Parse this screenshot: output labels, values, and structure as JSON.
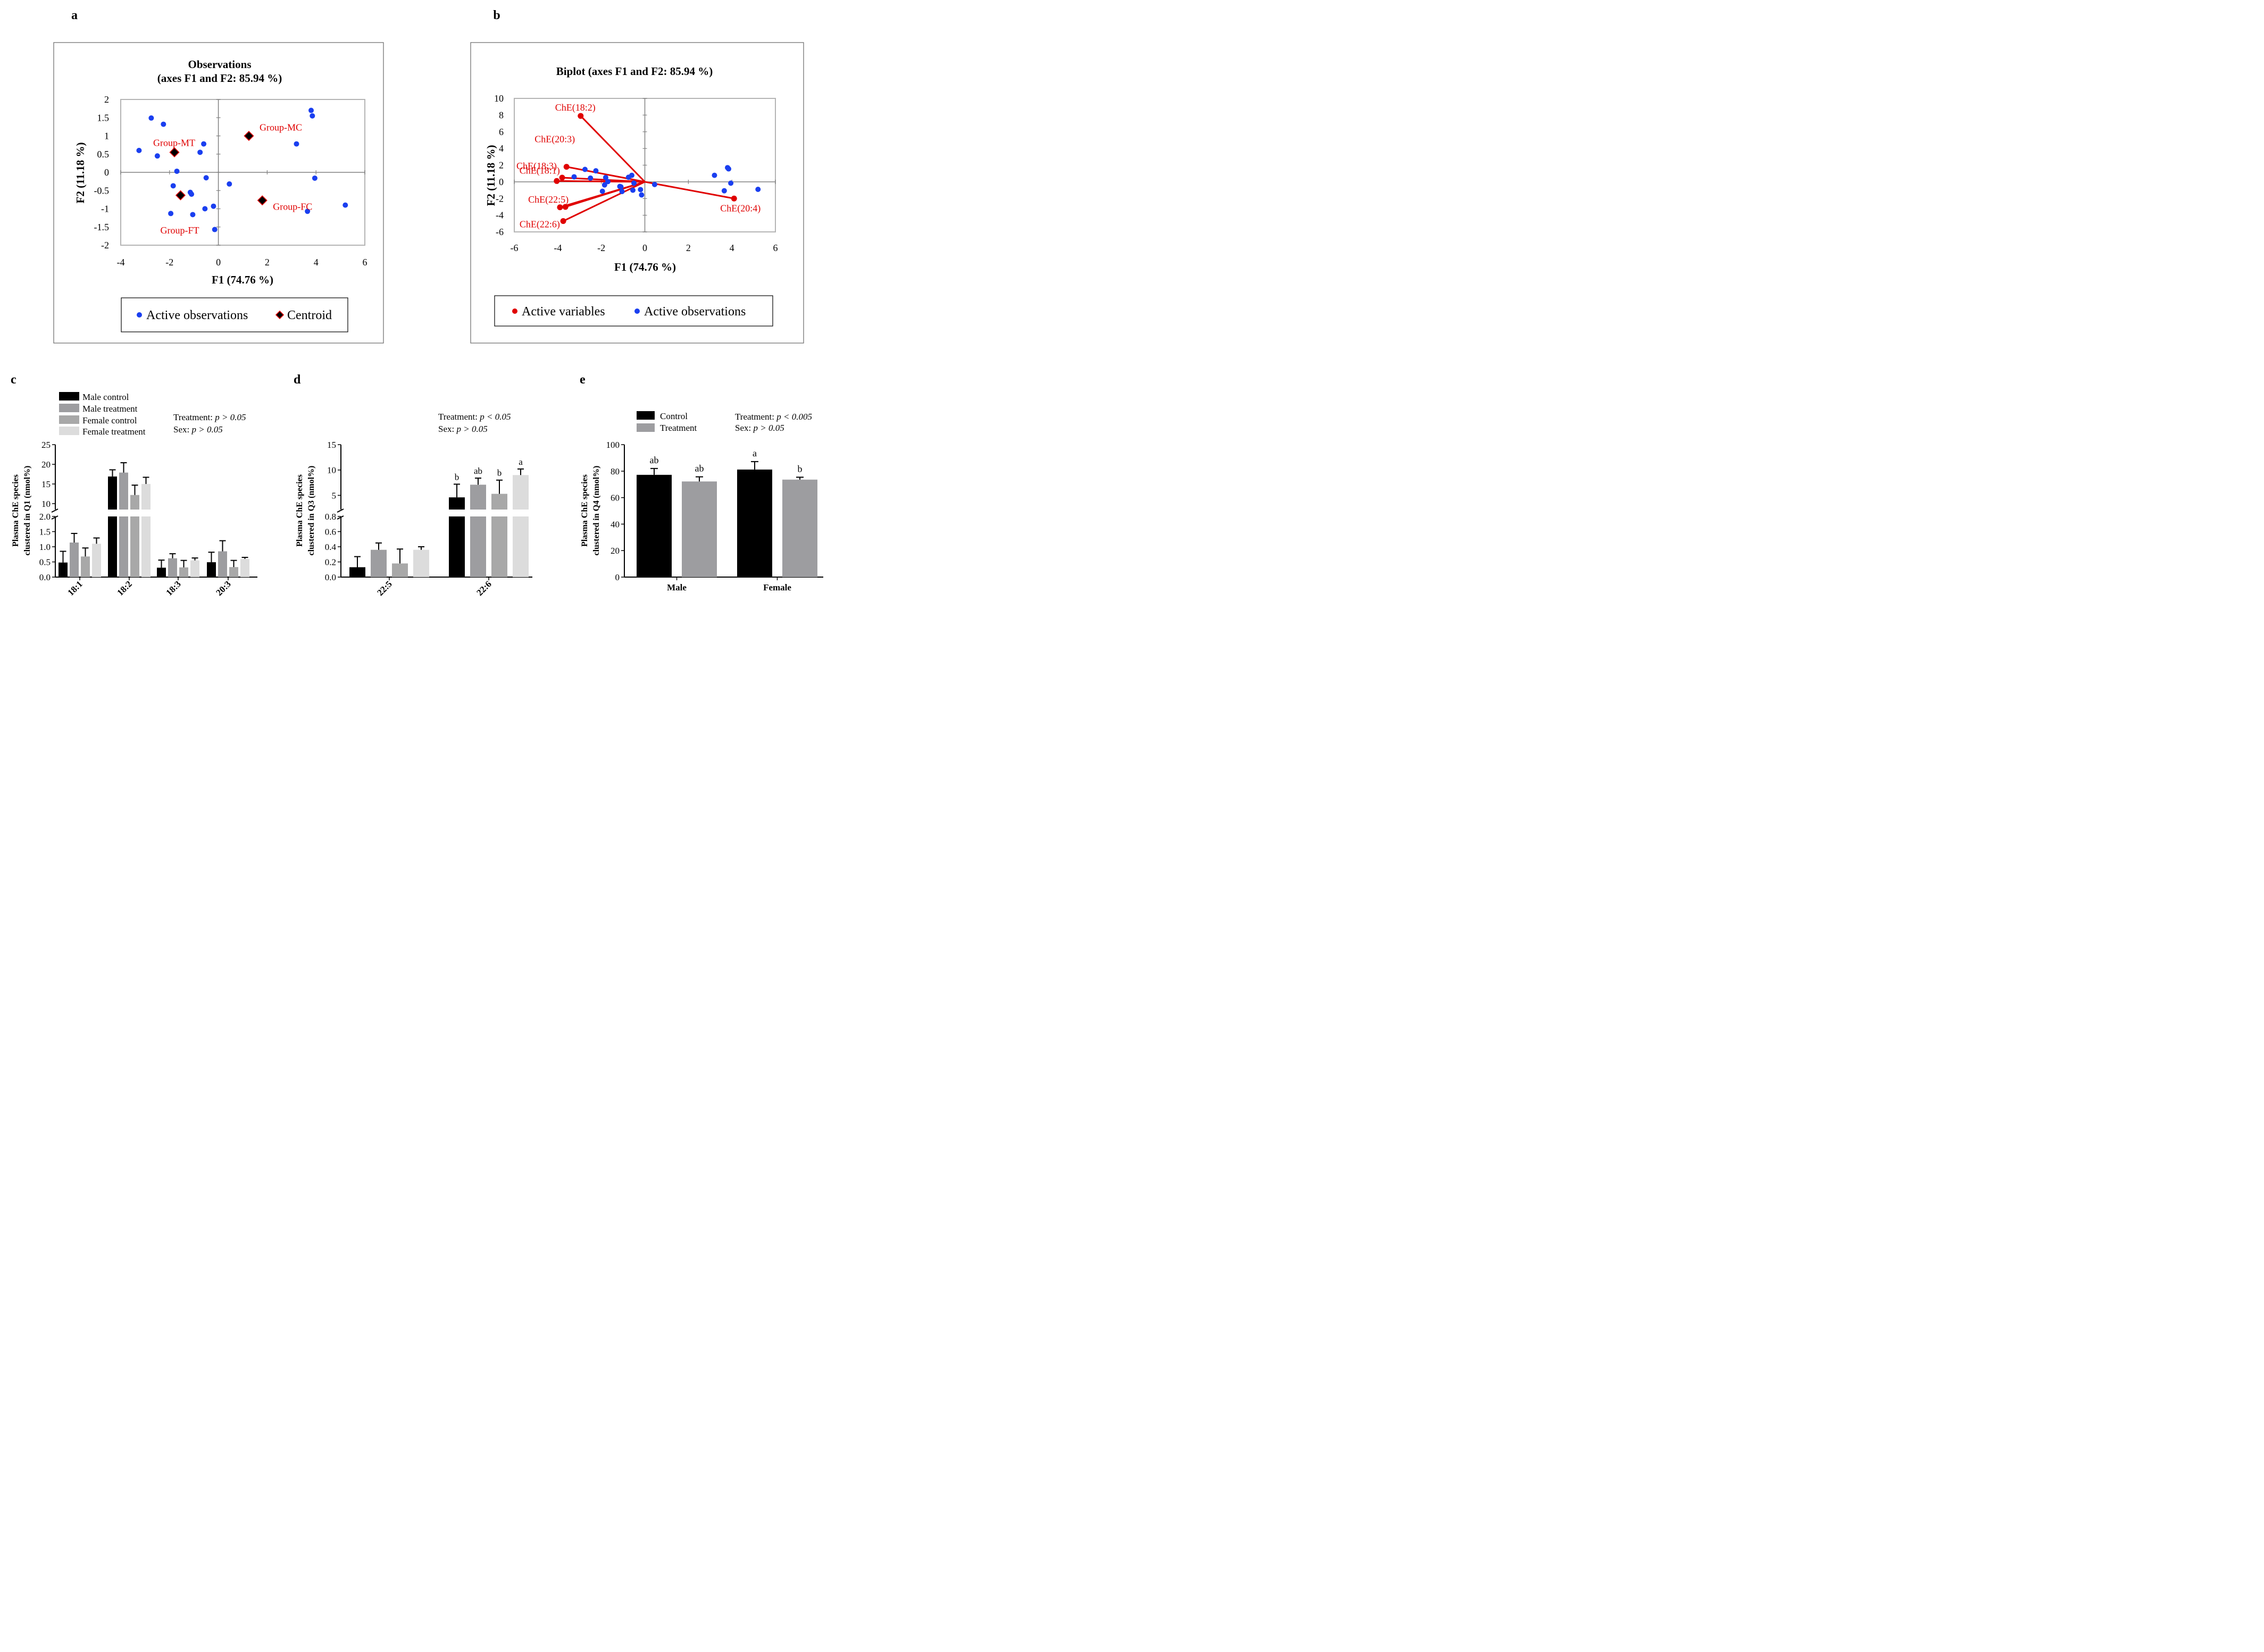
{
  "panel_labels": {
    "a": "a",
    "b": "b",
    "c": "c",
    "d": "d",
    "e": "e"
  },
  "chart_data": [
    {
      "id": "a",
      "type": "scatter",
      "title_line1": "Observations",
      "title_line2": "(axes F1 and F2: 85.94 %)",
      "xlabel": "F1 (74.76 %)",
      "ylabel": "F2 (11.18 %)",
      "xlim": [
        -4,
        6
      ],
      "ylim": [
        -2,
        2
      ],
      "xticks": [
        -4,
        -2,
        0,
        2,
        4,
        6
      ],
      "yticks": [
        -2,
        -1.5,
        -1,
        -0.5,
        0,
        0.5,
        1,
        1.5,
        2
      ],
      "observations": [
        [
          -2.75,
          1.49
        ],
        [
          -2.25,
          1.32
        ],
        [
          -3.25,
          0.6
        ],
        [
          -2.5,
          0.45
        ],
        [
          -1.8,
          0.52
        ],
        [
          -0.6,
          0.78
        ],
        [
          -0.75,
          0.55
        ],
        [
          -1.7,
          0.03
        ],
        [
          -0.5,
          -0.15
        ],
        [
          -1.85,
          -0.37
        ],
        [
          -1.15,
          -0.55
        ],
        [
          -1.1,
          -0.6
        ],
        [
          0.45,
          -0.32
        ],
        [
          -0.55,
          -1.0
        ],
        [
          -0.2,
          -0.93
        ],
        [
          -1.95,
          -1.13
        ],
        [
          -1.05,
          -1.16
        ],
        [
          -0.15,
          -1.57
        ],
        [
          3.8,
          1.7
        ],
        [
          3.85,
          1.55
        ],
        [
          3.2,
          0.78
        ],
        [
          3.95,
          -0.16
        ],
        [
          3.65,
          -1.07
        ],
        [
          5.2,
          -0.9
        ]
      ],
      "centroids": [
        {
          "label": "Group-MC",
          "x": 1.25,
          "y": 1.0
        },
        {
          "label": "Group-MT",
          "x": -1.8,
          "y": 0.55
        },
        {
          "label": "Group-FT",
          "x": -1.55,
          "y": -0.63
        },
        {
          "label": "Group-FC",
          "x": 1.8,
          "y": -0.77
        }
      ],
      "legend": [
        "Active observations",
        "Centroid"
      ]
    },
    {
      "id": "b",
      "type": "biplot",
      "title": "Biplot (axes F1 and F2: 85.94 %)",
      "xlabel": "F1 (74.76 %)",
      "ylabel": "F2 (11.18 %)",
      "xlim": [
        -6,
        6
      ],
      "ylim": [
        -6,
        10
      ],
      "xticks": [
        -6,
        -4,
        -2,
        0,
        2,
        4,
        6
      ],
      "yticks": [
        -6,
        -4,
        -2,
        0,
        2,
        4,
        6,
        8,
        10
      ],
      "variables": [
        {
          "label": "ChE(18:2)",
          "x": -2.95,
          "y": 7.9
        },
        {
          "label": "ChE(20:3)",
          "x": -3.6,
          "y": 1.8
        },
        {
          "label": "ChE(18:3)",
          "x": -3.8,
          "y": 0.5
        },
        {
          "label": "ChE(18:1)",
          "x": -4.05,
          "y": 0.1
        },
        {
          "label": "ChE(22:5)",
          "x": -3.65,
          "y": -3.0
        },
        {
          "label": "ChE(22:6)",
          "x": -3.9,
          "y": -3.05
        },
        {
          "label": "ChE(20:4)",
          "x": 4.1,
          "y": -2.0
        },
        {
          "label": "",
          "x": -3.75,
          "y": -4.7
        }
      ],
      "observations": [
        [
          -2.75,
          1.49
        ],
        [
          -2.25,
          1.32
        ],
        [
          -3.25,
          0.6
        ],
        [
          -2.5,
          0.45
        ],
        [
          -1.8,
          0.52
        ],
        [
          -0.6,
          0.78
        ],
        [
          -0.75,
          0.55
        ],
        [
          -1.7,
          0.03
        ],
        [
          -0.5,
          -0.15
        ],
        [
          -1.85,
          -0.37
        ],
        [
          -1.15,
          -0.55
        ],
        [
          -1.1,
          -0.6
        ],
        [
          0.45,
          -0.32
        ],
        [
          -0.55,
          -1.0
        ],
        [
          -0.2,
          -0.93
        ],
        [
          -1.95,
          -1.13
        ],
        [
          -1.05,
          -1.16
        ],
        [
          -0.15,
          -1.57
        ],
        [
          3.8,
          1.7
        ],
        [
          3.85,
          1.55
        ],
        [
          3.2,
          0.78
        ],
        [
          3.95,
          -0.16
        ],
        [
          3.65,
          -1.07
        ],
        [
          5.2,
          -0.9
        ]
      ],
      "legend": [
        "Active variables",
        "Active observations"
      ]
    },
    {
      "id": "c",
      "type": "bar",
      "ylabel_line1": "Plasma ChE species",
      "ylabel_line2": "clustered in Q1 (nmol%)",
      "categories": [
        "18:1",
        "18:2",
        "18:3",
        "20:3"
      ],
      "series": [
        {
          "name": "Male control",
          "color": "#000000",
          "values": [
            0.48,
            16.9,
            0.31,
            0.49
          ],
          "errors": [
            0.37,
            1.7,
            0.25,
            0.33
          ]
        },
        {
          "name": "Male treatment",
          "color": "#9d9da0",
          "values": [
            1.14,
            17.9,
            0.62,
            0.85
          ],
          "errors": [
            0.3,
            2.5,
            0.15,
            0.35
          ]
        },
        {
          "name": "Female control",
          "color": "#a8a8a8",
          "values": [
            0.68,
            12.2,
            0.32,
            0.33
          ],
          "errors": [
            0.28,
            2.5,
            0.23,
            0.22
          ]
        },
        {
          "name": "Female treatment",
          "color": "#dcdcdc",
          "values": [
            1.1,
            15.0,
            0.55,
            0.6
          ],
          "errors": [
            0.19,
            1.7,
            0.08,
            0.05
          ]
        }
      ],
      "yticks_low": [
        "0.0",
        "0.5",
        "1.0",
        "1.5",
        "2.0"
      ],
      "yticks_high": [
        "10",
        "15",
        "20",
        "25"
      ],
      "ylim_low": [
        0,
        2
      ],
      "ylim_high": [
        8.5,
        25
      ],
      "stats_line1_label": "Treatment:",
      "stats_line1_value": "p > 0.05",
      "stats_line2_label": "Sex:",
      "stats_line2_value": "p > 0.05"
    },
    {
      "id": "d",
      "type": "bar",
      "ylabel_line1": "Plasma ChE species",
      "ylabel_line2": "clustered in Q3 (nmol%)",
      "categories": [
        "22:5",
        "22:6"
      ],
      "series": [
        {
          "name": "Male control",
          "color": "#000000",
          "values": [
            0.13,
            4.6
          ],
          "errors": [
            0.14,
            2.6
          ],
          "letters": [
            "",
            "b"
          ]
        },
        {
          "name": "Male treatment",
          "color": "#9d9da0",
          "values": [
            0.36,
            7.1
          ],
          "errors": [
            0.09,
            1.3
          ],
          "letters": [
            "",
            "ab"
          ]
        },
        {
          "name": "Female control",
          "color": "#a8a8a8",
          "values": [
            0.18,
            5.3
          ],
          "errors": [
            0.19,
            2.7
          ],
          "letters": [
            "",
            "b"
          ]
        },
        {
          "name": "Female treatment",
          "color": "#dcdcdc",
          "values": [
            0.36,
            9.0
          ],
          "errors": [
            0.04,
            1.2
          ],
          "letters": [
            "",
            "a"
          ]
        }
      ],
      "yticks_low": [
        "0.0",
        "0.2",
        "0.4",
        "0.6",
        "0.8"
      ],
      "yticks_high": [
        "5",
        "10",
        "15"
      ],
      "ylim_low": [
        0,
        0.8
      ],
      "ylim_high": [
        2.2,
        15
      ],
      "stats_line1_label": "Treatment:",
      "stats_line1_value": "p < 0.05",
      "stats_line2_label": "Sex:",
      "stats_line2_value": "p > 0.05"
    },
    {
      "id": "e",
      "type": "bar",
      "ylabel_line1": "Plasma ChE species",
      "ylabel_line2": "clustered in Q4 (nmol%)",
      "categories": [
        "Male",
        "Female"
      ],
      "series": [
        {
          "name": "Control",
          "color": "#000000",
          "values": [
            77.2,
            81.2
          ],
          "errors": [
            4.8,
            6.0
          ],
          "letters": [
            "ab",
            "a"
          ]
        },
        {
          "name": "Treatment",
          "color": "#9d9da0",
          "values": [
            72.2,
            73.6
          ],
          "errors": [
            3.5,
            1.8
          ],
          "letters": [
            "ab",
            "b"
          ]
        }
      ],
      "yticks": [
        "0",
        "20",
        "40",
        "60",
        "80",
        "100"
      ],
      "ylim": [
        0,
        100
      ],
      "stats_line1_label": "Treatment:",
      "stats_line1_value": "p < 0.005",
      "stats_line2_label": "Sex:",
      "stats_line2_value": "p > 0.05"
    }
  ]
}
